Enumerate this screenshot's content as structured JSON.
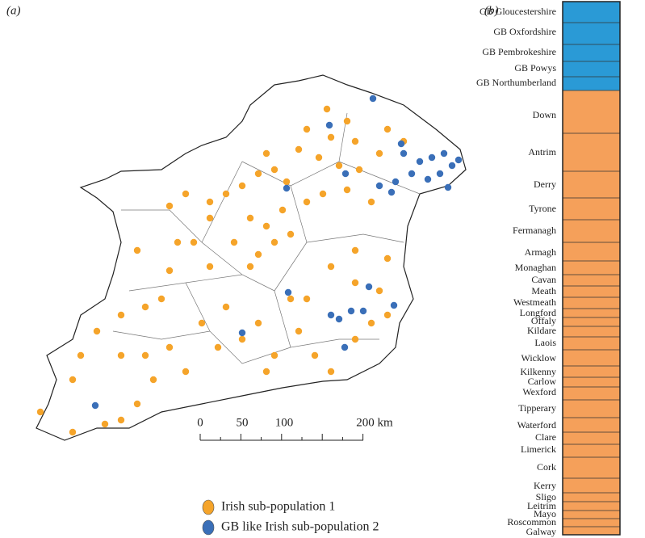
{
  "panel_a": {
    "label": "(a)",
    "scale_bar": {
      "labels": [
        "0",
        "50",
        "100",
        "200 km"
      ]
    },
    "legend": [
      {
        "name": "Irish sub-population 1",
        "color": "#f5a42a"
      },
      {
        "name": "GB like Irish sub-population 2",
        "color": "#3a6fb8"
      }
    ]
  },
  "panel_b": {
    "label": "(b)",
    "regions": [
      "GB Gloucestershire",
      "GB Oxfordshire",
      "GB Pembrokeshire",
      "GB Powys",
      "GB Northumberland",
      "Down",
      "Antrim",
      "Derry",
      "Tyrone",
      "Fermanagh",
      "Armagh",
      "Monaghan",
      "Cavan",
      "Meath",
      "Westmeath",
      "Longford",
      "Offaly",
      "Kildare",
      "Laois",
      "Wicklow",
      "Kilkenny",
      "Carlow",
      "Wexford",
      "Tipperary",
      "Waterford",
      "Clare",
      "Limerick",
      "Cork",
      "Kerry",
      "Sligo",
      "Leitrim",
      "Mayo",
      "Roscommon",
      "Galway"
    ]
  }
}
